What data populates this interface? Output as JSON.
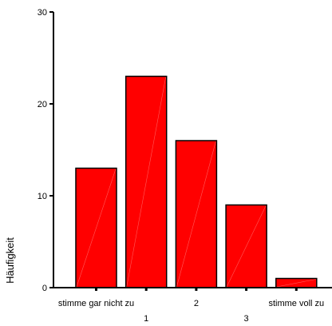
{
  "chart_data": {
    "type": "bar",
    "categories": [
      "stimme gar nicht zu",
      "1",
      "2",
      "3",
      "stimme voll zu"
    ],
    "values": [
      13,
      23,
      16,
      9,
      1
    ],
    "xlabel": "",
    "ylabel": "Häufigkeit",
    "ylim": [
      0,
      30
    ],
    "yticks": [
      0,
      10,
      20,
      30
    ],
    "grid": false,
    "legend": "none",
    "bar_color": "#ff0000",
    "bar_edge_color": "#000000"
  }
}
